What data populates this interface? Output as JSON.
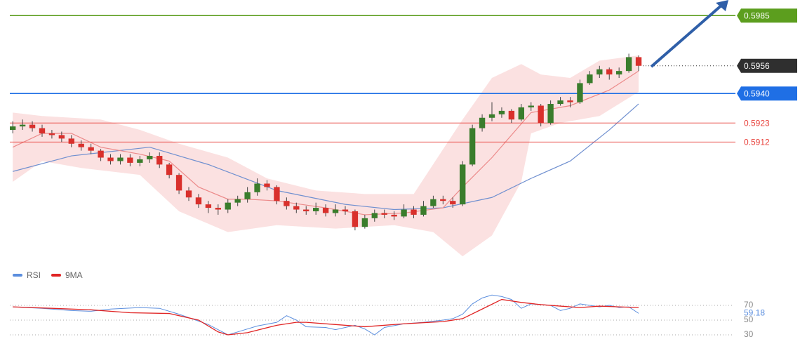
{
  "chart_data": {
    "type": "candlestick",
    "xlim": [
      -0.3,
      73.9
    ],
    "ylim": [
      0.5842,
      0.5994
    ],
    "up_color": "#3a7d2c",
    "down_color": "#d9302c",
    "candles": [
      [
        0.5919,
        0.5924,
        0.5917,
        0.5921
      ],
      [
        0.5921,
        0.5925,
        0.5919,
        0.5922
      ],
      [
        0.5922,
        0.5924,
        0.5918,
        0.592
      ],
      [
        0.592,
        0.5922,
        0.5915,
        0.5917
      ],
      [
        0.5917,
        0.5919,
        0.5914,
        0.5916
      ],
      [
        0.5916,
        0.5918,
        0.5912,
        0.5914
      ],
      [
        0.5914,
        0.5916,
        0.5909,
        0.5911
      ],
      [
        0.5911,
        0.5913,
        0.5907,
        0.5909
      ],
      [
        0.5909,
        0.5911,
        0.5905,
        0.5907
      ],
      [
        0.5907,
        0.5908,
        0.5901,
        0.5903
      ],
      [
        0.5903,
        0.5905,
        0.5899,
        0.5901
      ],
      [
        0.5901,
        0.5905,
        0.5899,
        0.5903
      ],
      [
        0.5903,
        0.5905,
        0.5898,
        0.59
      ],
      [
        0.59,
        0.5904,
        0.5898,
        0.5902
      ],
      [
        0.5902,
        0.5906,
        0.59,
        0.5904
      ],
      [
        0.5904,
        0.5906,
        0.5897,
        0.5899
      ],
      [
        0.5899,
        0.59,
        0.5891,
        0.5893
      ],
      [
        0.5893,
        0.5894,
        0.5882,
        0.5884
      ],
      [
        0.5884,
        0.5886,
        0.5878,
        0.588
      ],
      [
        0.588,
        0.5882,
        0.5874,
        0.5876
      ],
      [
        0.5876,
        0.5878,
        0.5871,
        0.5874
      ],
      [
        0.5874,
        0.5876,
        0.587,
        0.5873
      ],
      [
        0.5873,
        0.5879,
        0.5871,
        0.5877
      ],
      [
        0.5877,
        0.5881,
        0.5875,
        0.5879
      ],
      [
        0.5879,
        0.5886,
        0.5877,
        0.5883
      ],
      [
        0.5883,
        0.5891,
        0.5881,
        0.5888
      ],
      [
        0.5888,
        0.589,
        0.5884,
        0.5886
      ],
      [
        0.5886,
        0.5887,
        0.5876,
        0.5878
      ],
      [
        0.5878,
        0.588,
        0.5873,
        0.5875
      ],
      [
        0.5875,
        0.5877,
        0.5871,
        0.5873
      ],
      [
        0.5873,
        0.5875,
        0.587,
        0.5872
      ],
      [
        0.5872,
        0.5877,
        0.587,
        0.5874
      ],
      [
        0.5874,
        0.5876,
        0.5869,
        0.5871
      ],
      [
        0.5871,
        0.5876,
        0.5869,
        0.5873
      ],
      [
        0.5873,
        0.5875,
        0.587,
        0.5872
      ],
      [
        0.5872,
        0.5873,
        0.5861,
        0.5863
      ],
      [
        0.5863,
        0.587,
        0.5862,
        0.5868
      ],
      [
        0.5868,
        0.5873,
        0.5866,
        0.5871
      ],
      [
        0.5871,
        0.5873,
        0.5868,
        0.587
      ],
      [
        0.587,
        0.5872,
        0.5867,
        0.5869
      ],
      [
        0.5869,
        0.5876,
        0.5868,
        0.5873
      ],
      [
        0.5873,
        0.5875,
        0.5868,
        0.587
      ],
      [
        0.587,
        0.5878,
        0.5869,
        0.5875
      ],
      [
        0.5875,
        0.5881,
        0.5874,
        0.5879
      ],
      [
        0.5879,
        0.5881,
        0.5876,
        0.5878
      ],
      [
        0.5878,
        0.588,
        0.5874,
        0.5876
      ],
      [
        0.5876,
        0.5901,
        0.5875,
        0.5899
      ],
      [
        0.5899,
        0.5922,
        0.5898,
        0.592
      ],
      [
        0.592,
        0.5928,
        0.5918,
        0.5926
      ],
      [
        0.5926,
        0.5935,
        0.5924,
        0.5928
      ],
      [
        0.5928,
        0.5932,
        0.5926,
        0.593
      ],
      [
        0.593,
        0.5931,
        0.5923,
        0.5925
      ],
      [
        0.5925,
        0.5934,
        0.5924,
        0.5932
      ],
      [
        0.5932,
        0.5935,
        0.593,
        0.5933
      ],
      [
        0.5933,
        0.5934,
        0.5921,
        0.5923
      ],
      [
        0.5923,
        0.5936,
        0.5922,
        0.5934
      ],
      [
        0.5934,
        0.5938,
        0.5933,
        0.5936
      ],
      [
        0.5936,
        0.5938,
        0.5932,
        0.5935
      ],
      [
        0.5935,
        0.5948,
        0.5934,
        0.5946
      ],
      [
        0.5946,
        0.5953,
        0.5945,
        0.5951
      ],
      [
        0.5951,
        0.5956,
        0.5949,
        0.5954
      ],
      [
        0.5954,
        0.5955,
        0.5948,
        0.5951
      ],
      [
        0.5951,
        0.5955,
        0.5949,
        0.5953
      ],
      [
        0.5953,
        0.5963,
        0.5952,
        0.5961
      ],
      [
        0.5961,
        0.5962,
        0.5953,
        0.5956
      ]
    ],
    "bands": {
      "color": "#fadcdc",
      "upper": {
        "x": [
          0,
          3,
          9,
          13,
          17,
          22,
          26,
          31,
          36,
          41,
          46,
          49,
          52,
          54,
          57,
          60,
          64
        ],
        "values": [
          0.5929,
          0.5927,
          0.5925,
          0.5919,
          0.5911,
          0.5903,
          0.5891,
          0.5884,
          0.5882,
          0.5882,
          0.5925,
          0.5949,
          0.5957,
          0.5951,
          0.5949,
          0.5959,
          0.5962
        ]
      },
      "lower": {
        "x": [
          0,
          3,
          7,
          13,
          17,
          22,
          27,
          33,
          39,
          43,
          46,
          49,
          52,
          53,
          56,
          60,
          64
        ],
        "values": [
          0.5889,
          0.5901,
          0.5897,
          0.5893,
          0.5872,
          0.586,
          0.5864,
          0.5862,
          0.5864,
          0.586,
          0.5846,
          0.5858,
          0.5889,
          0.5917,
          0.5923,
          0.5927,
          0.5941
        ]
      }
    },
    "moving_averages": [
      {
        "color": "#7090d0",
        "x": [
          0,
          6,
          14,
          20,
          27,
          34,
          39,
          44,
          49,
          53,
          57,
          61,
          64
        ],
        "values": [
          0.5895,
          0.5904,
          0.5909,
          0.5899,
          0.5884,
          0.5876,
          0.5873,
          0.5874,
          0.588,
          0.5891,
          0.5901,
          0.5919,
          0.5934
        ]
      },
      {
        "color": "#ec8a8a",
        "x": [
          0,
          3,
          6,
          9,
          13,
          16,
          19,
          22,
          24,
          27,
          32,
          36,
          40,
          44,
          46,
          49,
          53,
          57,
          61,
          64
        ],
        "values": [
          0.5909,
          0.5917,
          0.5917,
          0.5909,
          0.5905,
          0.5901,
          0.5886,
          0.5879,
          0.5879,
          0.5878,
          0.5874,
          0.587,
          0.5871,
          0.5874,
          0.5886,
          0.5903,
          0.5929,
          0.5933,
          0.5942,
          0.5953
        ]
      }
    ],
    "levels": [
      {
        "value": 0.5985,
        "label": "0.5985",
        "color": "#5c9e1e",
        "style": "box"
      },
      {
        "value": 0.5956,
        "label": "0.5956",
        "color": "#2f2f2f",
        "style": "box-dotted"
      },
      {
        "value": 0.594,
        "label": "0.5940",
        "color": "#1f6fe5",
        "style": "box"
      },
      {
        "value": 0.5923,
        "label": "0.5923",
        "color": "#e8403a",
        "style": "text"
      },
      {
        "value": 0.5912,
        "label": "0.5912",
        "color": "#e8403a",
        "style": "text"
      }
    ],
    "rsi": {
      "ylim": [
        20,
        90
      ],
      "yticks": [
        70,
        50,
        30
      ],
      "series": [
        {
          "name": "RSI",
          "color": "#5b8ede",
          "x": [
            0,
            3,
            6,
            8,
            10,
            13,
            15,
            17,
            20,
            22,
            23,
            25,
            27,
            28,
            29,
            30,
            32,
            33,
            35,
            36,
            37,
            38,
            40,
            42,
            44,
            45,
            46,
            47,
            48,
            49,
            50,
            51,
            52,
            53,
            55,
            56,
            57,
            58,
            59,
            60,
            61,
            62,
            63,
            64
          ],
          "values": [
            68,
            66,
            63,
            62,
            65,
            67,
            66,
            58,
            44,
            30,
            34,
            42,
            47,
            56,
            50,
            41,
            40,
            37,
            43,
            38,
            30,
            40,
            45,
            47,
            50,
            52,
            58,
            72,
            80,
            84,
            82,
            78,
            66,
            72,
            70,
            63,
            66,
            72,
            70,
            68,
            70,
            67,
            68,
            59.18
          ]
        },
        {
          "name": "9MA",
          "color": "#e02424",
          "x": [
            0,
            4,
            8,
            12,
            16,
            19,
            21,
            22,
            24,
            27,
            29,
            30,
            33,
            36,
            40,
            44,
            46,
            48,
            50,
            52,
            54,
            56,
            58,
            60,
            62,
            64
          ],
          "values": [
            68,
            66,
            64,
            60,
            59,
            50,
            34,
            30,
            33,
            43,
            47,
            47,
            44,
            41,
            45,
            48,
            52,
            65,
            78,
            74,
            71,
            69,
            67,
            69,
            68,
            67
          ]
        }
      ]
    }
  }
}
